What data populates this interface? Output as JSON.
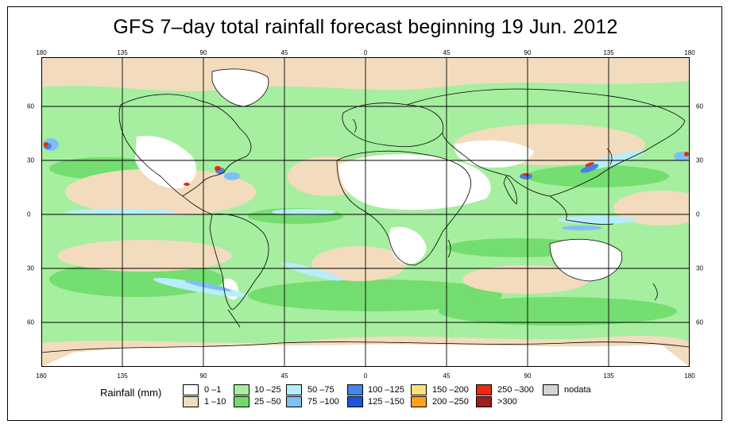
{
  "title": "GFS 7–day total rainfall forecast beginning 19 Jun. 2012",
  "longitude_labels": [
    "180",
    "135",
    "90",
    "45",
    "0",
    "45",
    "90",
    "135",
    "180"
  ],
  "latitude_labels": [
    "60",
    "30",
    "0",
    "30",
    "60"
  ],
  "legend": {
    "title": "Rainfall (mm)",
    "items": [
      {
        "label": "0 –1",
        "color": "#ffffff"
      },
      {
        "label": "1 –10",
        "color": "#f2dcbd"
      },
      {
        "label": "10 –25",
        "color": "#a6eea0"
      },
      {
        "label": "25 –50",
        "color": "#6fdc6a"
      },
      {
        "label": "50 –75",
        "color": "#b7eefa"
      },
      {
        "label": "75 –100",
        "color": "#7fbff5"
      },
      {
        "label": "100 –125",
        "color": "#3f86e8"
      },
      {
        "label": "125 –150",
        "color": "#1d55d6"
      },
      {
        "label": "150 –200",
        "color": "#ffe07a"
      },
      {
        "label": "200 –250",
        "color": "#ffa21a"
      },
      {
        "label": "250 –300",
        "color": "#ec2a10"
      },
      {
        "label": ">300",
        "color": "#a01d1d"
      },
      {
        "label": "nodata",
        "color": "#d4d4d4"
      }
    ]
  },
  "colors": {
    "ocean_base": "#a6eea0",
    "land_dry": "#ffffff",
    "arid": "#f2dcbd",
    "grid": "#000000"
  }
}
